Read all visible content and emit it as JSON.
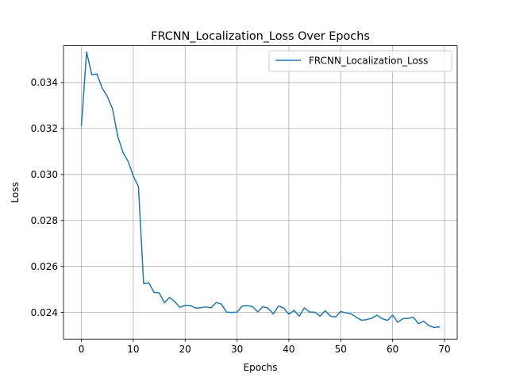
{
  "chart_data": {
    "type": "line",
    "title": "FRCNN_Localization_Loss Over Epochs",
    "xlabel": "Epochs",
    "ylabel": "Loss",
    "xlim": [
      -3.45,
      72.45
    ],
    "ylim": [
      0.02284,
      0.0356
    ],
    "xticks": [
      0,
      10,
      20,
      30,
      40,
      50,
      60,
      70
    ],
    "xtick_labels": [
      "0",
      "10",
      "20",
      "30",
      "40",
      "50",
      "60",
      "70"
    ],
    "yticks": [
      0.024,
      0.026,
      0.028,
      0.03,
      0.032,
      0.034
    ],
    "ytick_labels": [
      "0.024",
      "0.026",
      "0.028",
      "0.030",
      "0.032",
      "0.034"
    ],
    "grid": true,
    "legend_position": "upper right",
    "color": "#1f77b4",
    "series": [
      {
        "name": "FRCNN_Localization_Loss",
        "color": "#1f77b4",
        "x": [
          0,
          1,
          2,
          3,
          4,
          5,
          6,
          7,
          8,
          9,
          10,
          11,
          12,
          13,
          14,
          15,
          16,
          17,
          18,
          19,
          20,
          21,
          22,
          23,
          24,
          25,
          26,
          27,
          28,
          29,
          30,
          31,
          32,
          33,
          34,
          35,
          36,
          37,
          38,
          39,
          40,
          41,
          42,
          43,
          44,
          45,
          46,
          47,
          48,
          49,
          50,
          51,
          52,
          53,
          54,
          55,
          56,
          57,
          58,
          59,
          60,
          61,
          62,
          63,
          64,
          65,
          66,
          67,
          68,
          69
        ],
        "values": [
          0.03212,
          0.03533,
          0.03434,
          0.03437,
          0.03376,
          0.03339,
          0.03286,
          0.03167,
          0.03097,
          0.03057,
          0.02994,
          0.02947,
          0.02525,
          0.02529,
          0.02487,
          0.02485,
          0.02442,
          0.02465,
          0.02447,
          0.02422,
          0.02431,
          0.0243,
          0.02419,
          0.0242,
          0.02424,
          0.0242,
          0.02443,
          0.02436,
          0.02401,
          0.024,
          0.02401,
          0.02428,
          0.0243,
          0.02425,
          0.02402,
          0.02425,
          0.02418,
          0.02393,
          0.02428,
          0.02419,
          0.02392,
          0.02409,
          0.02384,
          0.0242,
          0.02401,
          0.02401,
          0.02384,
          0.02407,
          0.02384,
          0.0238,
          0.02404,
          0.02398,
          0.02394,
          0.02379,
          0.02366,
          0.02369,
          0.02375,
          0.02388,
          0.02373,
          0.02365,
          0.02388,
          0.02357,
          0.02373,
          0.02374,
          0.02379,
          0.02351,
          0.02362,
          0.02342,
          0.02335,
          0.02337
        ]
      }
    ]
  }
}
